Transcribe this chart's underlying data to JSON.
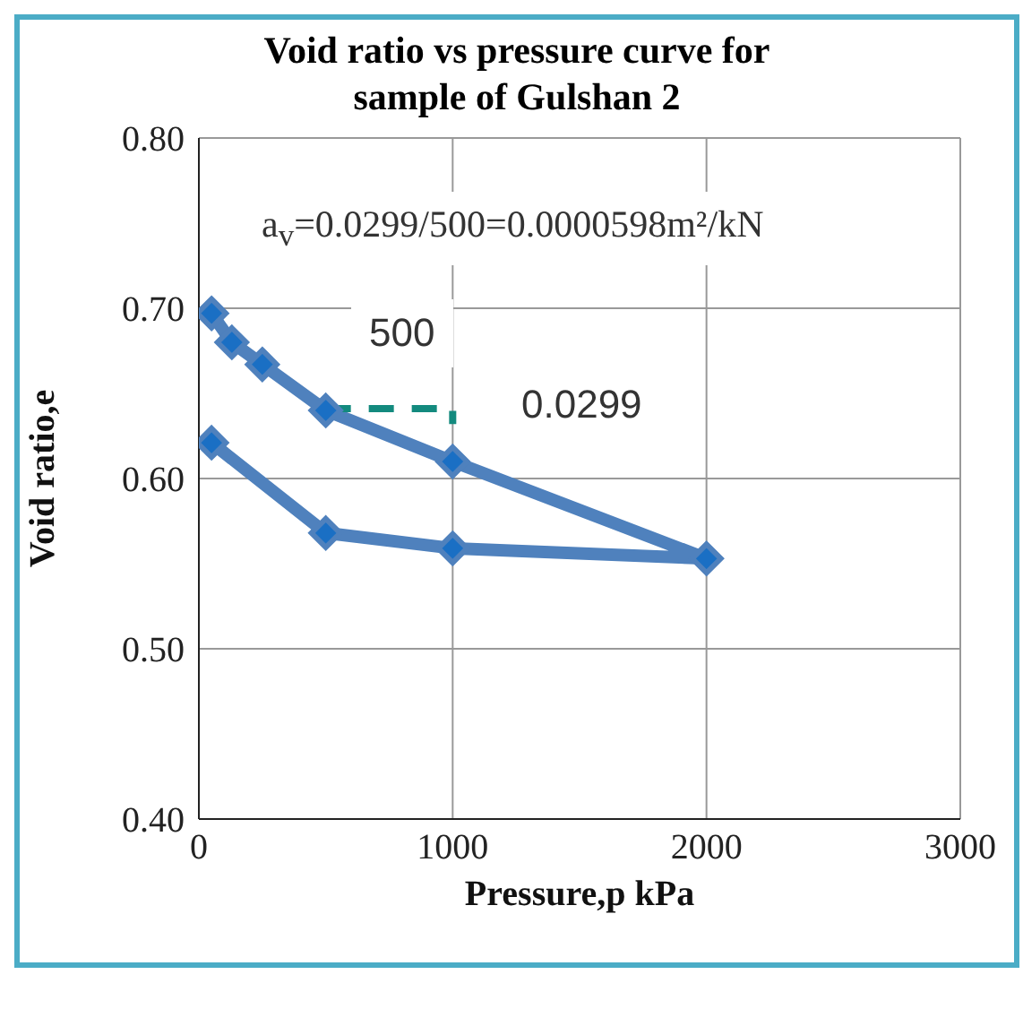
{
  "chart_data": {
    "type": "line",
    "title": "Void ratio vs pressure curve for sample of Gulshan 2",
    "xlabel": "Pressure,p kPa",
    "ylabel": "Void ratio,e",
    "series": [
      {
        "color": "#4f81bd",
        "x": [
          50,
          130,
          250,
          500,
          1000,
          2000,
          1000,
          500,
          50
        ],
        "values": [
          0.697,
          0.68,
          0.667,
          0.64,
          0.61,
          0.553,
          0.559,
          0.568,
          0.621
        ],
        "marker": "diamond",
        "line_style": "solid"
      },
      {
        "color": "#138a7e",
        "x": [
          500,
          1000,
          1000
        ],
        "values": [
          0.641,
          0.641,
          0.632
        ],
        "marker": "none",
        "line_style": "dashed"
      }
    ],
    "xlim": [
      0,
      3000
    ],
    "xticks": [
      0,
      1000,
      2000,
      3000
    ],
    "ylim": [
      0.4,
      0.8
    ],
    "yticks": [
      {
        "value": 0.4,
        "label": "0.40"
      },
      {
        "value": 0.5,
        "label": "0.50"
      },
      {
        "value": 0.6,
        "label": "0.60"
      },
      {
        "value": 0.7,
        "label": "0.70"
      },
      {
        "value": 0.8,
        "label": "0.80"
      }
    ],
    "grid": true,
    "annotations": [
      "a$_{v}$=0.0299/500=0.0000598m²/kN",
      "500",
      "0.0299"
    ]
  }
}
